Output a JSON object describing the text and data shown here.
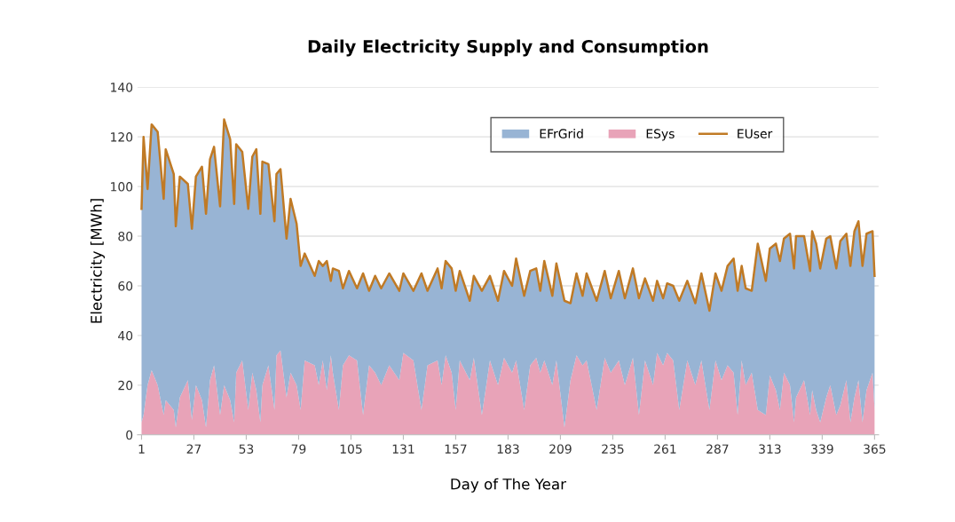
{
  "chart_data": {
    "type": "area",
    "stacked": true,
    "title": "Daily Electricity Supply and Consumption",
    "xlabel": "Day of The Year",
    "ylabel": "Electricity [MWh]",
    "x": [
      1,
      2,
      4,
      6,
      9,
      12,
      13,
      17,
      18,
      20,
      24,
      26,
      28,
      31,
      33,
      35,
      37,
      40,
      42,
      45,
      47,
      48,
      51,
      54,
      56,
      58,
      60,
      61,
      64,
      67,
      68,
      70,
      73,
      75,
      78,
      80,
      82,
      87,
      89,
      91,
      93,
      95,
      96,
      99,
      101,
      104,
      108,
      111,
      114,
      117,
      120,
      124,
      129,
      131,
      136,
      140,
      143,
      148,
      150,
      152,
      155,
      157,
      159,
      164,
      166,
      170,
      174,
      178,
      181,
      185,
      187,
      191,
      194,
      197,
      199,
      201,
      205,
      207,
      211,
      214,
      217,
      220,
      222,
      227,
      231,
      234,
      238,
      241,
      245,
      248,
      251,
      255,
      257,
      260,
      262,
      265,
      268,
      272,
      276,
      279,
      283,
      286,
      289,
      292,
      295,
      297,
      299,
      301,
      304,
      307,
      311,
      313,
      316,
      318,
      320,
      323,
      325,
      326,
      330,
      333,
      334,
      336,
      338,
      341,
      343,
      346,
      348,
      351,
      353,
      355,
      357,
      359,
      361,
      364,
      365
    ],
    "series": [
      {
        "name": "ESys",
        "color": "#e8a3b8",
        "values": [
          5,
          8,
          20,
          26,
          20,
          8,
          14,
          10,
          3,
          15,
          22,
          6,
          20,
          14,
          3,
          22,
          28,
          8,
          20,
          14,
          5,
          25,
          30,
          10,
          25,
          18,
          5,
          20,
          28,
          10,
          32,
          34,
          15,
          25,
          20,
          10,
          30,
          28,
          20,
          30,
          18,
          32,
          25,
          10,
          28,
          32,
          30,
          8,
          28,
          25,
          20,
          28,
          22,
          33,
          30,
          10,
          28,
          30,
          20,
          32,
          25,
          10,
          30,
          22,
          31,
          8,
          30,
          20,
          31,
          25,
          30,
          10,
          28,
          31,
          25,
          30,
          20,
          30,
          3,
          22,
          32,
          28,
          30,
          10,
          31,
          25,
          30,
          20,
          31,
          8,
          30,
          20,
          33,
          28,
          33,
          30,
          10,
          30,
          20,
          30,
          10,
          30,
          22,
          28,
          25,
          8,
          30,
          20,
          25,
          10,
          8,
          24,
          18,
          10,
          25,
          20,
          5,
          15,
          22,
          8,
          18,
          10,
          5,
          15,
          20,
          8,
          12,
          22,
          5,
          15,
          22,
          5,
          18,
          25,
          10
        ]
      },
      {
        "name": "EFrGrid",
        "color": "#98b4d4",
        "values": [
          86,
          112,
          79,
          99,
          102,
          87,
          101,
          95,
          81,
          89,
          79,
          77,
          84,
          94,
          86,
          89,
          88,
          84,
          107,
          105,
          88,
          92,
          84,
          81,
          87,
          97,
          84,
          90,
          81,
          76,
          73,
          73,
          64,
          70,
          65,
          58,
          43,
          36,
          50,
          38,
          52,
          30,
          42,
          56,
          31,
          34,
          29,
          57,
          30,
          39,
          39,
          37,
          36,
          32,
          28,
          55,
          30,
          37,
          39,
          38,
          42,
          48,
          36,
          32,
          33,
          50,
          34,
          34,
          35,
          35,
          41,
          46,
          38,
          36,
          33,
          40,
          36,
          39,
          51,
          31,
          33,
          28,
          35,
          44,
          35,
          30,
          36,
          35,
          36,
          47,
          33,
          34,
          29,
          27,
          28,
          30,
          44,
          32,
          33,
          35,
          40,
          35,
          36,
          40,
          46,
          50,
          38,
          39,
          33,
          67,
          54,
          51,
          59,
          60,
          54,
          61,
          62,
          65,
          58,
          58,
          64,
          67,
          62,
          64,
          60,
          59,
          66,
          59,
          63,
          67,
          64,
          63,
          63,
          57,
          54
        ]
      },
      {
        "name": "EUser",
        "type": "line",
        "color": "#c07a25",
        "values": [
          91,
          120,
          99,
          125,
          122,
          95,
          115,
          105,
          84,
          104,
          101,
          83,
          104,
          108,
          89,
          111,
          116,
          92,
          127,
          119,
          93,
          117,
          114,
          91,
          112,
          115,
          89,
          110,
          109,
          86,
          105,
          107,
          79,
          95,
          85,
          68,
          73,
          64,
          70,
          68,
          70,
          62,
          67,
          66,
          59,
          66,
          59,
          65,
          58,
          64,
          59,
          65,
          58,
          65,
          58,
          65,
          58,
          67,
          59,
          70,
          67,
          58,
          66,
          54,
          64,
          58,
          64,
          54,
          66,
          60,
          71,
          56,
          66,
          67,
          58,
          70,
          56,
          69,
          54,
          53,
          65,
          56,
          65,
          54,
          66,
          55,
          66,
          55,
          67,
          55,
          63,
          54,
          62,
          55,
          61,
          60,
          54,
          62,
          53,
          65,
          50,
          65,
          58,
          68,
          71,
          58,
          68,
          59,
          58,
          77,
          62,
          75,
          77,
          70,
          79,
          81,
          67,
          80,
          80,
          66,
          82,
          77,
          67,
          79,
          80,
          67,
          78,
          81,
          68,
          82,
          86,
          68,
          81,
          82,
          64
        ]
      }
    ],
    "xlim": [
      -1,
      367
    ],
    "xticks": [
      1,
      27,
      53,
      79,
      105,
      131,
      157,
      183,
      209,
      235,
      261,
      287,
      313,
      339,
      365
    ],
    "ylim": [
      0,
      140
    ],
    "yticks": [
      0,
      20,
      40,
      60,
      80,
      100,
      120,
      140
    ],
    "grid": "y",
    "legend": "top right"
  }
}
